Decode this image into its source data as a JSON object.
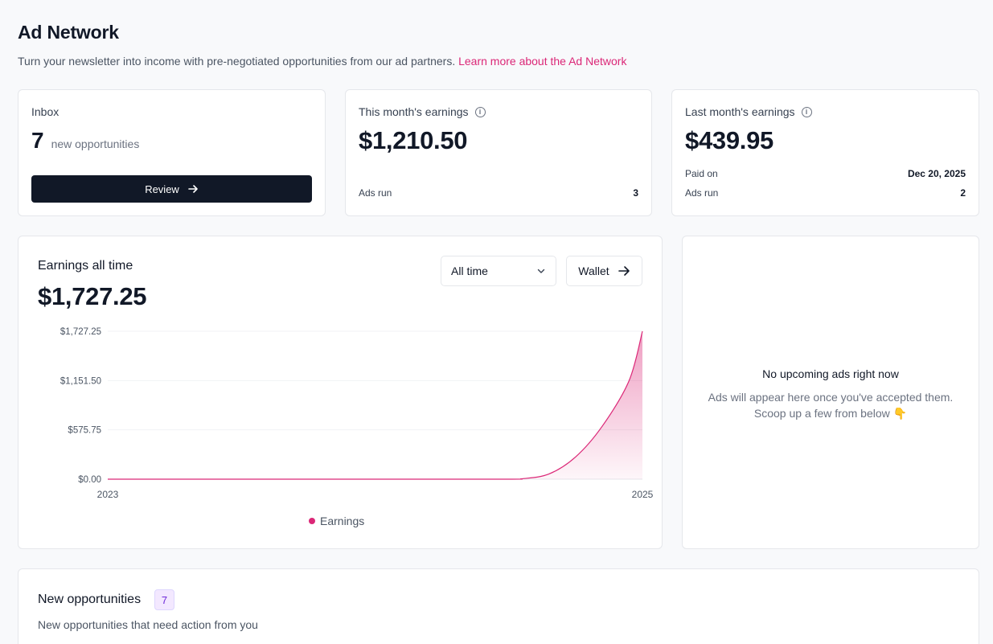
{
  "header": {
    "title": "Ad Network",
    "subtitle": "Turn your newsletter into income with pre-negotiated opportunities from our ad partners.",
    "learn_more": "Learn more about the Ad Network"
  },
  "inbox": {
    "label": "Inbox",
    "count": "7",
    "count_text": "new opportunities",
    "button": "Review",
    "button_icon": "arrow-right-icon"
  },
  "this_month": {
    "label": "This month's earnings",
    "amount": "$1,210.50",
    "ads_run_label": "Ads run",
    "ads_run": "3"
  },
  "last_month": {
    "label": "Last month's earnings",
    "amount": "$439.95",
    "paid_on_label": "Paid on",
    "paid_on": "Dec 20, 2025",
    "ads_run_label": "Ads run",
    "ads_run": "2"
  },
  "earnings": {
    "label": "Earnings all time",
    "total": "$1,727.25",
    "range_selected": "All time",
    "wallet_button": "Wallet"
  },
  "upcoming": {
    "title": "No upcoming ads right now",
    "line1": "Ads will appear here once you've accepted them.",
    "line2": "Scoop up a few from below 👇"
  },
  "opportunities": {
    "title": "New opportunities",
    "badge": "7",
    "subtitle": "New opportunities that need action from you"
  },
  "colors": {
    "accent": "#db2777",
    "dark": "#111827"
  },
  "chart_data": {
    "type": "area",
    "x": [
      2023,
      2023.5,
      2024,
      2024.5,
      2024.55,
      2024.65,
      2024.75,
      2024.85,
      2024.95,
      2025
    ],
    "series": [
      {
        "name": "Earnings",
        "values": [
          0,
          0,
          0,
          0,
          5,
          60,
          260,
          620,
          1150,
          1727.25
        ]
      }
    ],
    "xticks": [
      "2023",
      "2025"
    ],
    "yticks": [
      "$0.00",
      "$575.75",
      "$1,151.50",
      "$1,727.25"
    ],
    "ylim": [
      0,
      1727.25
    ],
    "xlim": [
      2023,
      2025
    ],
    "grid": true,
    "legend": "bottom-center",
    "color": "#db2777"
  }
}
